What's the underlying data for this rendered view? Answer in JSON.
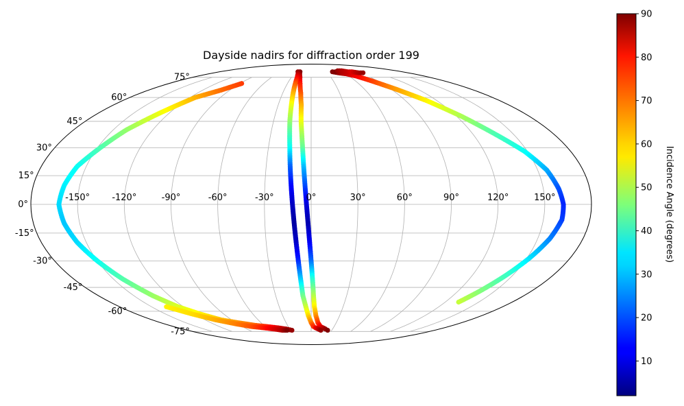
{
  "chart_data": {
    "type": "scatter",
    "projection": "mollweide",
    "title": "Dayside nadirs for diffraction order 199",
    "lon_ticks": [
      "-150°",
      "-120°",
      "-90°",
      "-60°",
      "-30°",
      "0°",
      "30°",
      "60°",
      "90°",
      "120°",
      "150°"
    ],
    "lat_ticks": [
      {
        "lat": 75,
        "label": "75°"
      },
      {
        "lat": 60,
        "label": "60°"
      },
      {
        "lat": 45,
        "label": "45°"
      },
      {
        "lat": 30,
        "label": "30°"
      },
      {
        "lat": 15,
        "label": "15°"
      },
      {
        "lat": 0,
        "label": "0°"
      },
      {
        "lat": -15,
        "label": "-15°"
      },
      {
        "lat": -30,
        "label": "-30°"
      },
      {
        "lat": -45,
        "label": "-45°"
      },
      {
        "lat": -60,
        "label": "-60°"
      },
      {
        "lat": -75,
        "label": "-75°"
      }
    ],
    "grid": true,
    "colorbar": {
      "label": "Incidence Angle (degrees)",
      "colormap": "jet",
      "range": [
        2,
        90
      ],
      "ticks": [
        10,
        20,
        30,
        40,
        50,
        60,
        70,
        80,
        90
      ]
    },
    "tracks": [
      {
        "points": [
          [
            -22,
            80,
            90
          ],
          [
            -20,
            78,
            88
          ],
          [
            -17,
            75,
            83
          ],
          [
            -14,
            70,
            77
          ],
          [
            -11,
            63,
            72
          ],
          [
            -9,
            55,
            64
          ],
          [
            -8,
            45,
            56
          ],
          [
            -7,
            38,
            50
          ],
          [
            -6,
            30,
            44
          ],
          [
            -5,
            20,
            30
          ],
          [
            -4,
            10,
            20
          ],
          [
            -3,
            0,
            10
          ],
          [
            -2,
            -10,
            6
          ],
          [
            -1,
            -20,
            12
          ],
          [
            0,
            -30,
            22
          ],
          [
            1,
            -40,
            38
          ],
          [
            2,
            -50,
            50
          ],
          [
            3,
            -57,
            58
          ],
          [
            5,
            -63,
            66
          ],
          [
            8,
            -68,
            74
          ],
          [
            12,
            -71,
            80
          ],
          [
            16,
            -72,
            84
          ],
          [
            20,
            -73,
            88
          ],
          [
            24,
            -74,
            90
          ]
        ]
      },
      {
        "points": [
          [
            -26,
            80,
            88
          ],
          [
            -23,
            78,
            85
          ],
          [
            -21,
            75,
            80
          ],
          [
            -20,
            70,
            72
          ],
          [
            -19,
            63,
            64
          ],
          [
            -18,
            55,
            56
          ],
          [
            -17,
            45,
            48
          ],
          [
            -16,
            38,
            42
          ],
          [
            -15,
            30,
            36
          ],
          [
            -14,
            20,
            22
          ],
          [
            -13,
            10,
            14
          ],
          [
            -12,
            0,
            8
          ],
          [
            -11,
            -10,
            5
          ],
          [
            -10,
            -20,
            8
          ],
          [
            -9,
            -30,
            16
          ],
          [
            -8,
            -40,
            30
          ],
          [
            -7,
            -50,
            44
          ],
          [
            -5,
            -57,
            52
          ],
          [
            -3,
            -63,
            60
          ],
          [
            0,
            -68,
            68
          ],
          [
            3,
            -71,
            75
          ],
          [
            6,
            -72,
            80
          ],
          [
            10,
            -73,
            84
          ],
          [
            14,
            -74,
            88
          ]
        ]
      },
      {
        "points": [
          [
            -88,
            70,
            74
          ],
          [
            -100,
            65,
            70
          ],
          [
            -115,
            60,
            64
          ],
          [
            -128,
            50,
            56
          ],
          [
            -140,
            40,
            48
          ],
          [
            -148,
            30,
            42
          ],
          [
            -156,
            20,
            36
          ],
          [
            -160,
            10,
            34
          ],
          [
            -162,
            0,
            32
          ],
          [
            -160,
            -10,
            30
          ],
          [
            -156,
            -20,
            32
          ],
          [
            -150,
            -30,
            36
          ],
          [
            -143,
            -40,
            42
          ],
          [
            -134,
            -50,
            48
          ],
          [
            -125,
            -57,
            54
          ],
          [
            -114,
            -62,
            58
          ],
          [
            -102,
            -66,
            62
          ],
          [
            -88,
            -68,
            66
          ],
          [
            -72,
            -70,
            70
          ],
          [
            -58,
            -71,
            76
          ],
          [
            -45,
            -72,
            82
          ],
          [
            -35,
            -73,
            86
          ],
          [
            -28,
            -74,
            88
          ]
        ]
      },
      {
        "points": [
          [
            -136,
            -57,
            58
          ],
          [
            -122,
            -62,
            60
          ],
          [
            -108,
            -66,
            64
          ],
          [
            -92,
            -69,
            68
          ],
          [
            -78,
            -71,
            72
          ],
          [
            -64,
            -72,
            77
          ],
          [
            -52,
            -73,
            82
          ],
          [
            -42,
            -74,
            86
          ],
          [
            -35,
            -74,
            90
          ]
        ]
      },
      {
        "points": [
          [
            42,
            80,
            90
          ],
          [
            50,
            79,
            88
          ],
          [
            62,
            78,
            84
          ],
          [
            72,
            76,
            80
          ],
          [
            82,
            72,
            74
          ],
          [
            95,
            66,
            66
          ],
          [
            110,
            58,
            58
          ],
          [
            124,
            48,
            50
          ],
          [
            136,
            38,
            42
          ],
          [
            148,
            28,
            36
          ],
          [
            156,
            18,
            28
          ],
          [
            160,
            8,
            20
          ],
          [
            162,
            0,
            16
          ],
          [
            162,
            -8,
            18
          ],
          [
            158,
            -18,
            24
          ],
          [
            152,
            -28,
            32
          ],
          [
            145,
            -38,
            40
          ],
          [
            138,
            -47,
            46
          ],
          [
            132,
            -54,
            52
          ]
        ]
      },
      {
        "points": [
          [
            48,
            80,
            90
          ],
          [
            56,
            81,
            88
          ],
          [
            64,
            81,
            86
          ],
          [
            72,
            80,
            84
          ],
          [
            80,
            80,
            82
          ],
          [
            88,
            79,
            86
          ],
          [
            96,
            79,
            88
          ]
        ]
      }
    ]
  }
}
